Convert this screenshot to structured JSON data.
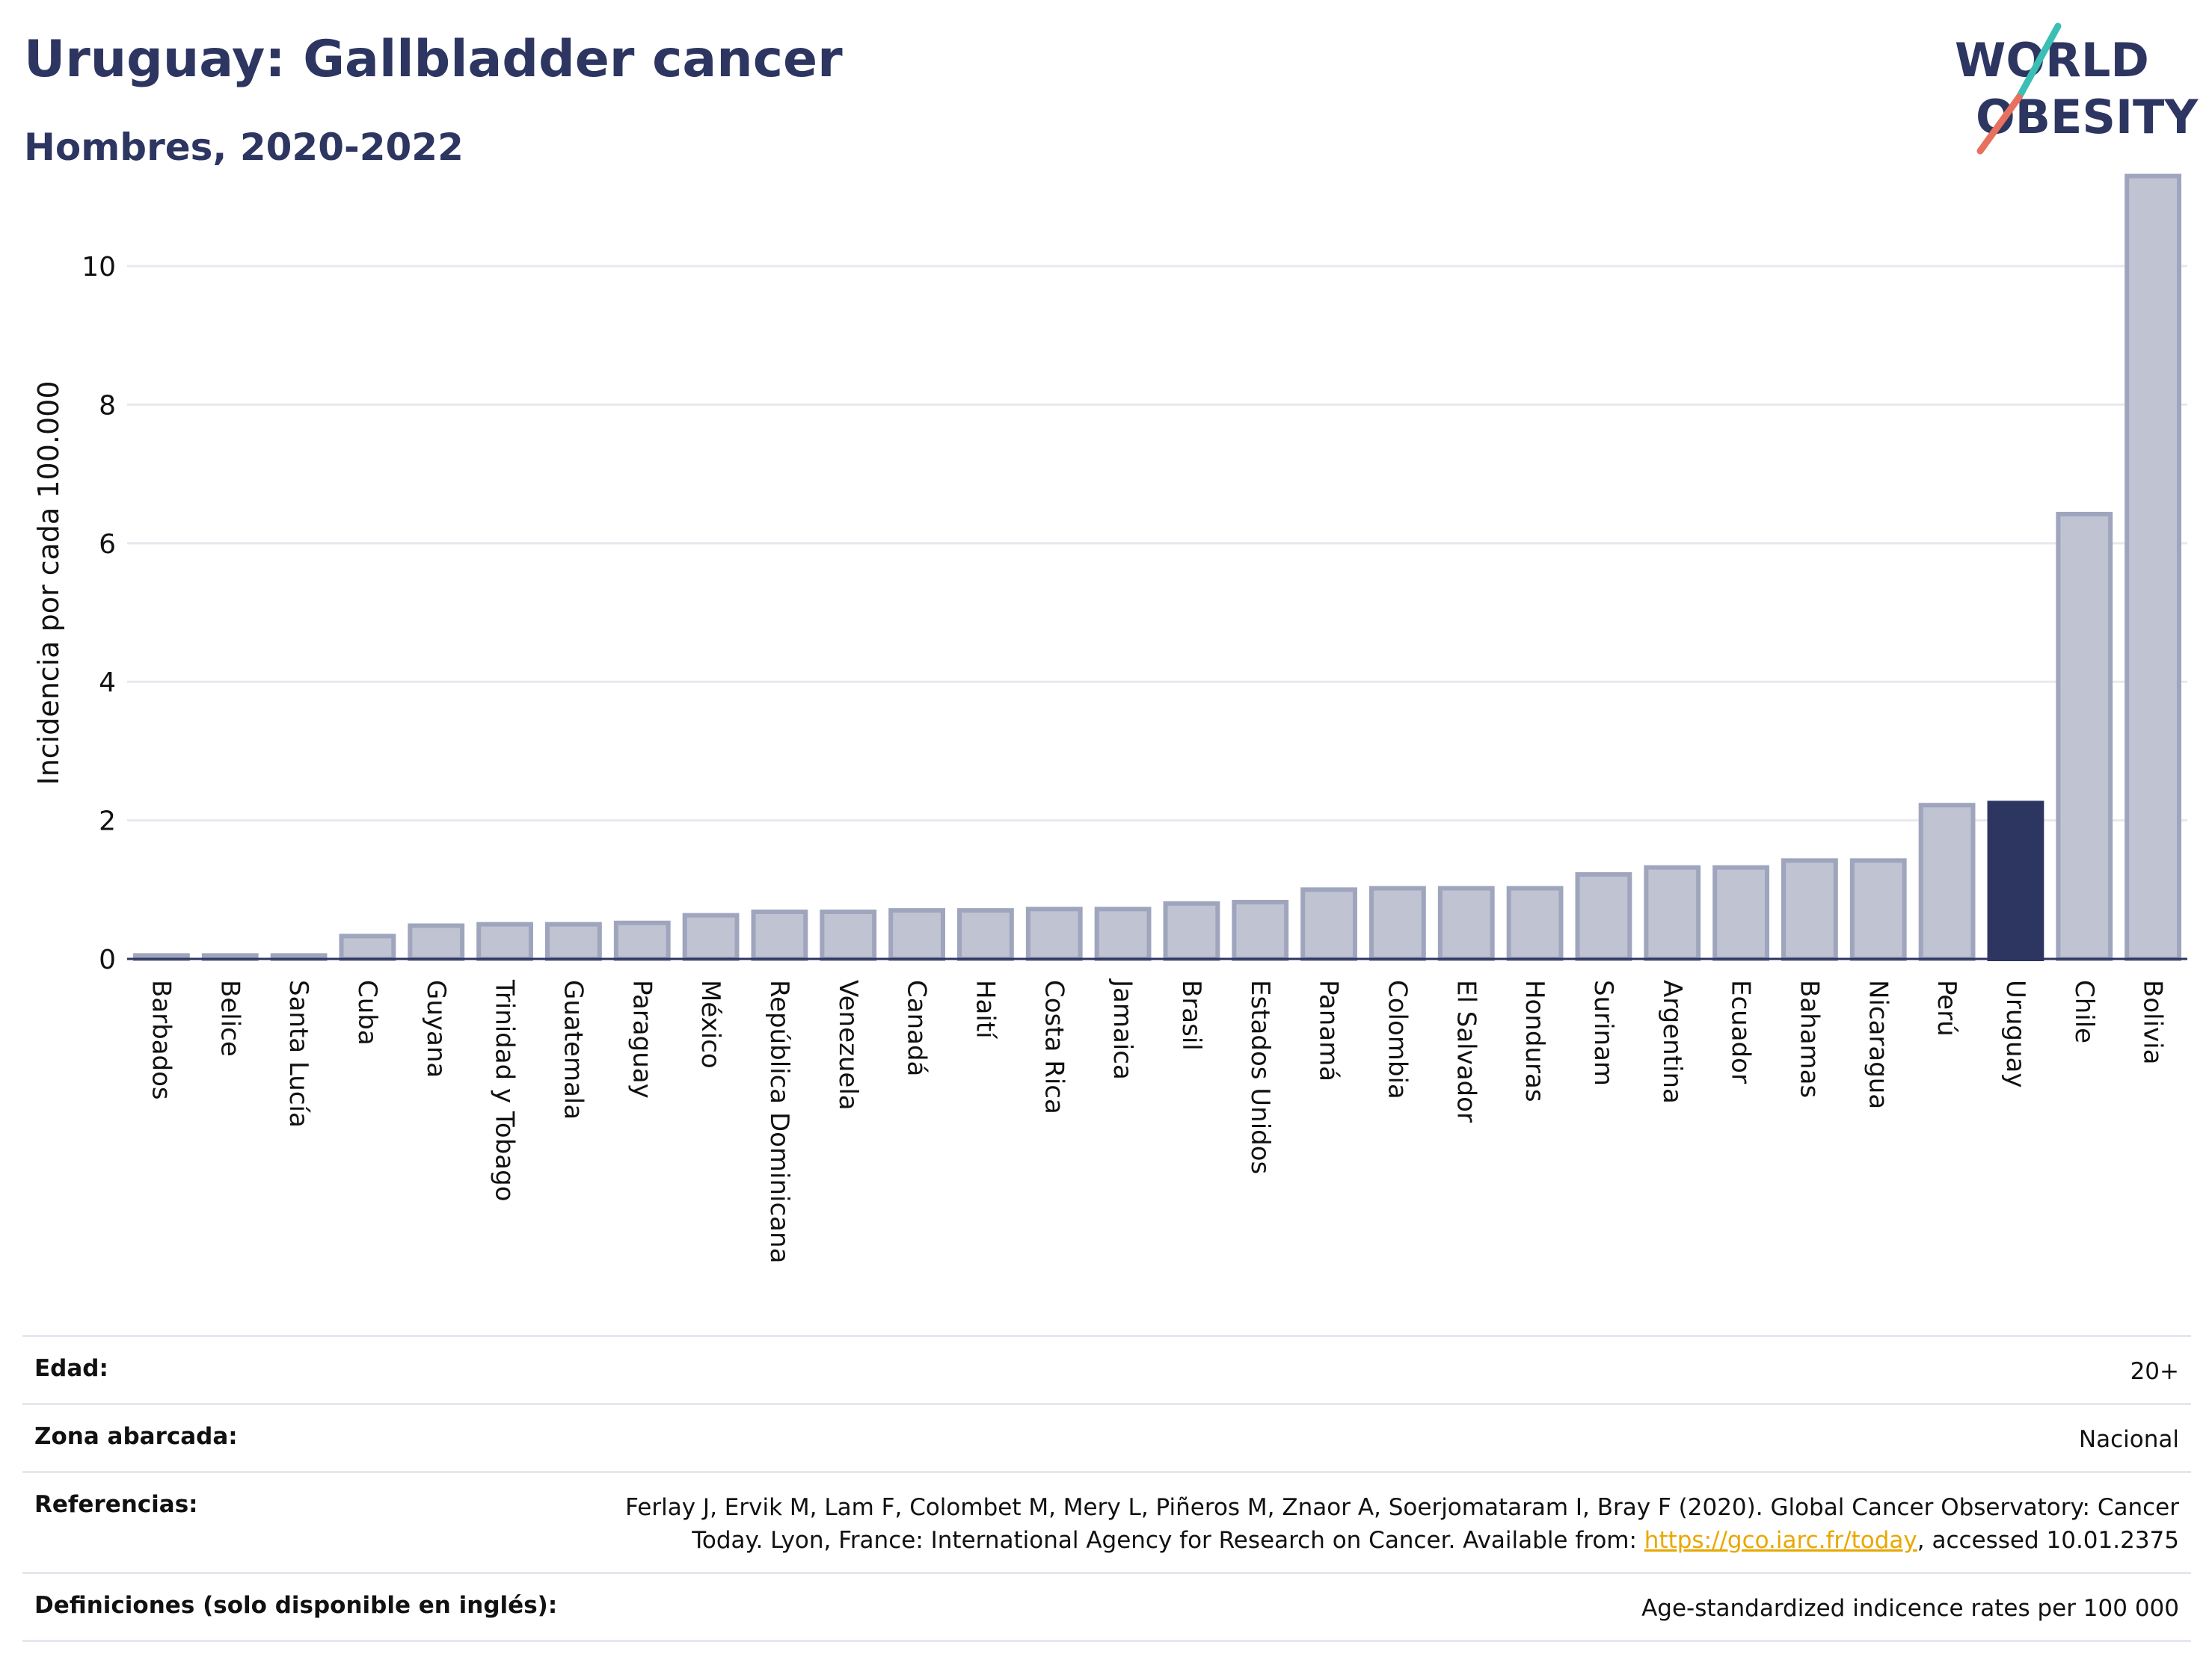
{
  "header": {
    "title": "Uruguay: Gallbladder cancer",
    "subtitle": "Hombres, 2020-2022"
  },
  "logo": {
    "line1": "WORLD",
    "line2": "OBESITY"
  },
  "colors": {
    "bar": "#bfc3d2",
    "bar_edge": "#9fa5bc",
    "highlight": "#2d3561",
    "title": "#2d3561",
    "grid": "#e8e8ef",
    "logo_teal": "#3bbfb4",
    "logo_red": "#e8705e"
  },
  "chart_data": {
    "type": "bar",
    "ylabel": "Incidencia por cada 100.000",
    "ylim": [
      0,
      11.5
    ],
    "yticks": [
      "0",
      "2",
      "4",
      "6",
      "8",
      "10"
    ],
    "highlight": "Uruguay",
    "categories": [
      "Barbados",
      "Belice",
      "Santa Lucía",
      "Cuba",
      "Guyana",
      "Trinidad y Tobago",
      "Guatemala",
      "Paraguay",
      "México",
      "República Dominicana",
      "Venezuela",
      "Canadá",
      "Haití",
      "Costa Rica",
      "Jamaica",
      "Brasil",
      "Estados Unidos",
      "Panamá",
      "Colombia",
      "El Salvador",
      "Honduras",
      "Surinam",
      "Argentina",
      "Ecuador",
      "Bahamas",
      "Nicaragua",
      "Perú",
      "Uruguay",
      "Chile",
      "Bolivia"
    ],
    "values": [
      0.05,
      0.05,
      0.05,
      0.33,
      0.48,
      0.5,
      0.5,
      0.52,
      0.63,
      0.68,
      0.68,
      0.7,
      0.7,
      0.72,
      0.72,
      0.8,
      0.82,
      1.0,
      1.02,
      1.02,
      1.02,
      1.22,
      1.32,
      1.32,
      1.42,
      1.42,
      2.22,
      2.25,
      6.42,
      11.3
    ]
  },
  "meta": {
    "edad_label": "Edad:",
    "edad_value": "20+",
    "zona_label": "Zona abarcada:",
    "zona_value": "Nacional",
    "ref_label": "Referencias:",
    "ref_text_1": "Ferlay J, Ervik M, Lam F, Colombet M, Mery L, Piñeros M, Znaor A, Soerjomataram I, Bray F (2020). Global Cancer Observatory: Cancer Today. Lyon, France: International Agency for Research on Cancer. Available from: ",
    "ref_link": "https://gco.iarc.fr/today",
    "ref_text_2": ", accessed 10.01.2375",
    "def_label": "Definiciones (solo disponible en inglés):",
    "def_value": "Age-standardized indicence rates per 100 000"
  }
}
